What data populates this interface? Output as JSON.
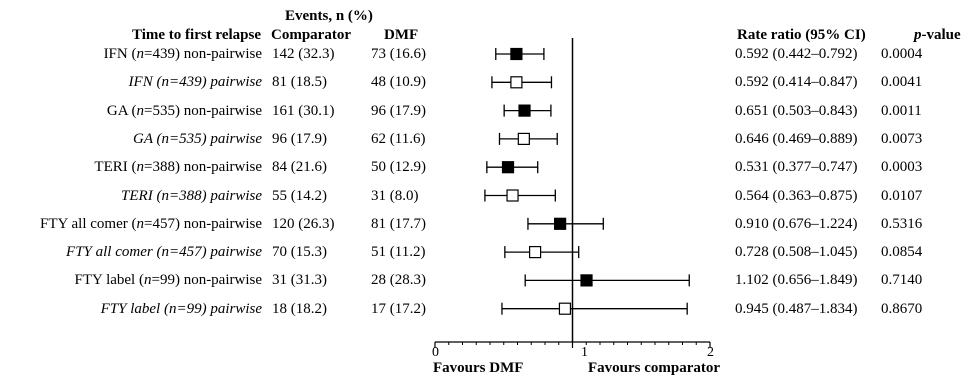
{
  "headers": {
    "events_top": "Events, n (%)",
    "label_col": "Time to first relapse",
    "comparator_col": "Comparator",
    "dmf_col": "DMF",
    "rr_col": "Rate ratio (95% CI)",
    "p_col_italic": "p",
    "p_col_rest": "-value"
  },
  "rows": [
    {
      "pre": "IFN (",
      "n_sym": "n",
      "post": "=439) non-pairwise",
      "italic": false,
      "comparator": "142 (32.3)",
      "dmf": "73 (16.6)",
      "rr_text": "0.592 (0.442–0.792)",
      "p": "0.0004"
    },
    {
      "pre": "IFN (n=439) pairwise",
      "n_sym": "",
      "post": "",
      "italic": true,
      "comparator": "81 (18.5)",
      "dmf": "48 (10.9)",
      "rr_text": "0.592 (0.414–0.847)",
      "p": "0.0041"
    },
    {
      "pre": "GA (",
      "n_sym": "n",
      "post": "=535) non-pairwise",
      "italic": false,
      "comparator": "161 (30.1)",
      "dmf": "96 (17.9)",
      "rr_text": "0.651 (0.503–0.843)",
      "p": "0.0011"
    },
    {
      "pre": "GA (n=535) pairwise",
      "n_sym": "",
      "post": "",
      "italic": true,
      "comparator": "96 (17.9)",
      "dmf": "62 (11.6)",
      "rr_text": "0.646 (0.469–0.889)",
      "p": "0.0073"
    },
    {
      "pre": "TERI (",
      "n_sym": "n",
      "post": "=388) non-pairwise",
      "italic": false,
      "comparator": "84 (21.6)",
      "dmf": "50 (12.9)",
      "rr_text": "0.531 (0.377–0.747)",
      "p": "0.0003"
    },
    {
      "pre": "TERI (n=388) pairwise",
      "n_sym": "",
      "post": "",
      "italic": true,
      "comparator": "55 (14.2)",
      "dmf": "31 (8.0)",
      "rr_text": "0.564 (0.363–0.875)",
      "p": "0.0107"
    },
    {
      "pre": "FTY all comer (",
      "n_sym": "n",
      "post": "=457) non-pairwise",
      "italic": false,
      "comparator": "120 (26.3)",
      "dmf": "81 (17.7)",
      "rr_text": "0.910 (0.676–1.224)",
      "p": "0.5316"
    },
    {
      "pre": "FTY all comer (n=457) pairwise",
      "n_sym": "",
      "post": "",
      "italic": true,
      "comparator": "70 (15.3)",
      "dmf": "51 (11.2)",
      "rr_text": "0.728 (0.508–1.045)",
      "p": "0.0854"
    },
    {
      "pre": "FTY label (",
      "n_sym": "n",
      "post": "=99) non-pairwise",
      "italic": false,
      "comparator": "31 (31.3)",
      "dmf": "28 (28.3)",
      "rr_text": "1.102 (0.656–1.849)",
      "p": "0.7140"
    },
    {
      "pre": "FTY label (n=99) pairwise",
      "n_sym": "",
      "post": "",
      "italic": true,
      "comparator": "18 (18.2)",
      "dmf": "17 (17.2)",
      "rr_text": "0.945 (0.487–1.834)",
      "p": "0.8670"
    }
  ],
  "chart_data": {
    "type": "forest",
    "xlim": [
      0,
      2
    ],
    "ticks": [
      "0",
      "1",
      "2"
    ],
    "reference_line": 1,
    "x_left_label": "Favours DMF",
    "x_right_label": "Favours comparator",
    "series": [
      {
        "marker": "filled-square",
        "rows": [
          0,
          2,
          4,
          6,
          8
        ]
      },
      {
        "marker": "open-square",
        "rows": [
          1,
          3,
          5,
          7,
          9
        ]
      }
    ],
    "points": [
      {
        "rr": 0.592,
        "lo": 0.442,
        "hi": 0.792,
        "filled": true
      },
      {
        "rr": 0.592,
        "lo": 0.414,
        "hi": 0.847,
        "filled": false
      },
      {
        "rr": 0.651,
        "lo": 0.503,
        "hi": 0.843,
        "filled": true
      },
      {
        "rr": 0.646,
        "lo": 0.469,
        "hi": 0.889,
        "filled": false
      },
      {
        "rr": 0.531,
        "lo": 0.377,
        "hi": 0.747,
        "filled": true
      },
      {
        "rr": 0.564,
        "lo": 0.363,
        "hi": 0.875,
        "filled": false
      },
      {
        "rr": 0.91,
        "lo": 0.676,
        "hi": 1.224,
        "filled": true
      },
      {
        "rr": 0.728,
        "lo": 0.508,
        "hi": 1.045,
        "filled": false
      },
      {
        "rr": 1.102,
        "lo": 0.656,
        "hi": 1.849,
        "filled": true
      },
      {
        "rr": 0.945,
        "lo": 0.487,
        "hi": 1.834,
        "filled": false
      }
    ]
  }
}
